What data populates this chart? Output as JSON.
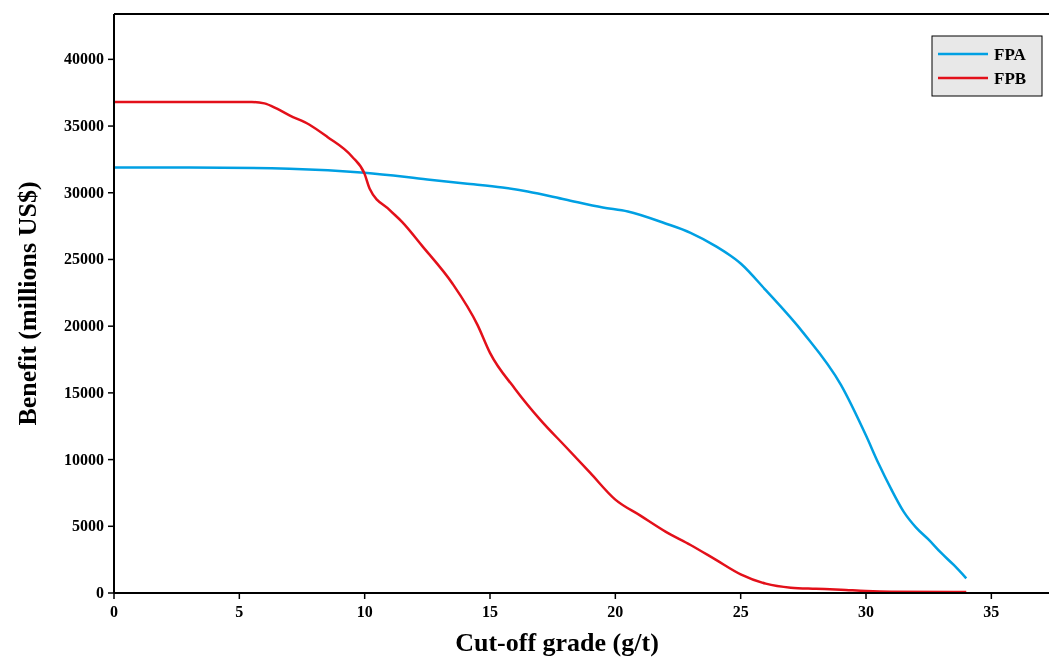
{
  "chart_data": {
    "type": "line",
    "xlabel": "Cut-off grade (g/t)",
    "ylabel": "Benefit (millions US$)",
    "xlim": [
      0,
      37.3
    ],
    "ylim": [
      0,
      43400
    ],
    "xticks": [
      0,
      5,
      10,
      15,
      20,
      25,
      30,
      35
    ],
    "yticks": [
      0,
      5000,
      10000,
      15000,
      20000,
      25000,
      30000,
      35000,
      40000
    ],
    "grid": false,
    "legend": "top right",
    "marker": "none",
    "line_style": "solid",
    "series": [
      {
        "name": "FPA",
        "color": "#00a0e3",
        "x": [
          0,
          3,
          7,
          10,
          12.5,
          14,
          15.5,
          16.5,
          18,
          19.5,
          20.5,
          22,
          23,
          24,
          25,
          26,
          27.5,
          29,
          30,
          30.5,
          31,
          31.5,
          32,
          32.5,
          33,
          33.5,
          34
        ],
        "values": [
          31900,
          31900,
          31800,
          31500,
          31000,
          30700,
          30400,
          30100,
          29500,
          28900,
          28600,
          27700,
          27000,
          26000,
          24700,
          22700,
          19500,
          15600,
          11800,
          9700,
          7800,
          6100,
          4900,
          4000,
          3000,
          2100,
          1100
        ]
      },
      {
        "name": "FPB",
        "color": "#e3101a",
        "x": [
          0,
          3,
          5.5,
          6,
          6.5,
          7,
          7.8,
          8.5,
          9.5,
          10,
          10.2,
          11,
          11.5,
          12.3,
          13.5,
          14.5,
          15,
          16,
          17,
          18,
          19,
          20,
          21,
          22,
          23,
          24,
          25,
          26,
          27,
          28,
          29,
          30,
          31,
          34
        ],
        "values": [
          36800,
          36800,
          36800,
          36700,
          36300,
          35800,
          35100,
          34200,
          32700,
          31400,
          30300,
          28700,
          27800,
          26000,
          23200,
          20100,
          18000,
          15300,
          13000,
          11000,
          9000,
          7000,
          5800,
          4600,
          3600,
          2500,
          1400,
          700,
          400,
          320,
          250,
          150,
          100,
          80
        ]
      }
    ]
  }
}
